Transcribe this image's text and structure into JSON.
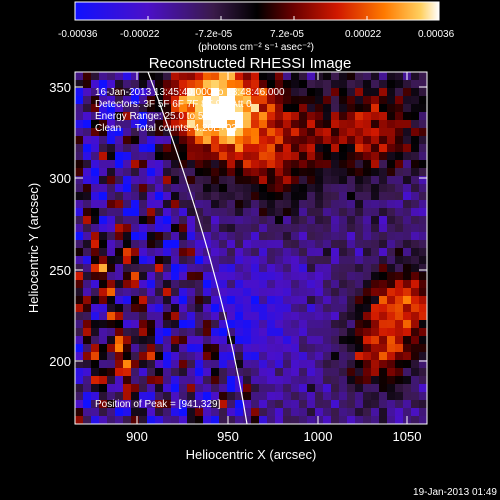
{
  "colorbar": {
    "ticks": [
      "-0.00036",
      "-0.00022",
      "-7.2e-05",
      "7.2e-05",
      "0.00022",
      "0.00036"
    ],
    "unit_label": "(photons cm⁻² s⁻¹ asec⁻²)",
    "colormap": [
      "#1010ff",
      "#4b10c8",
      "#6a2a8a",
      "#000000",
      "#6a0000",
      "#d01800",
      "#ff7a00",
      "#ffd060",
      "#ffffff"
    ]
  },
  "plot": {
    "title": "Reconstructed RHESSI Image",
    "xlabel": "Heliocentric X (arcsec)",
    "ylabel": "Heliocentric Y (arcsec)",
    "xticks": [
      "900",
      "950",
      "1000",
      "1050"
    ],
    "yticks": [
      "200",
      "250",
      "300",
      "350"
    ],
    "xlim": [
      866,
      1060
    ],
    "ylim": [
      166,
      360
    ]
  },
  "annotations": {
    "time_range": "16-Jan-2013 13:45:40.000 to 13:48:46.000",
    "detectors": "Detectors: 3F 5F 6F 7F 8F 9F, Att 0",
    "energy": "Energy Range: 25.0 to 50.0 keV",
    "method": "Clean     Total counts: 4.20E+03",
    "peak": "Position of Peak = [941,329]"
  },
  "footer": {
    "timestamp": "19-Jan-2013 01:49"
  }
}
